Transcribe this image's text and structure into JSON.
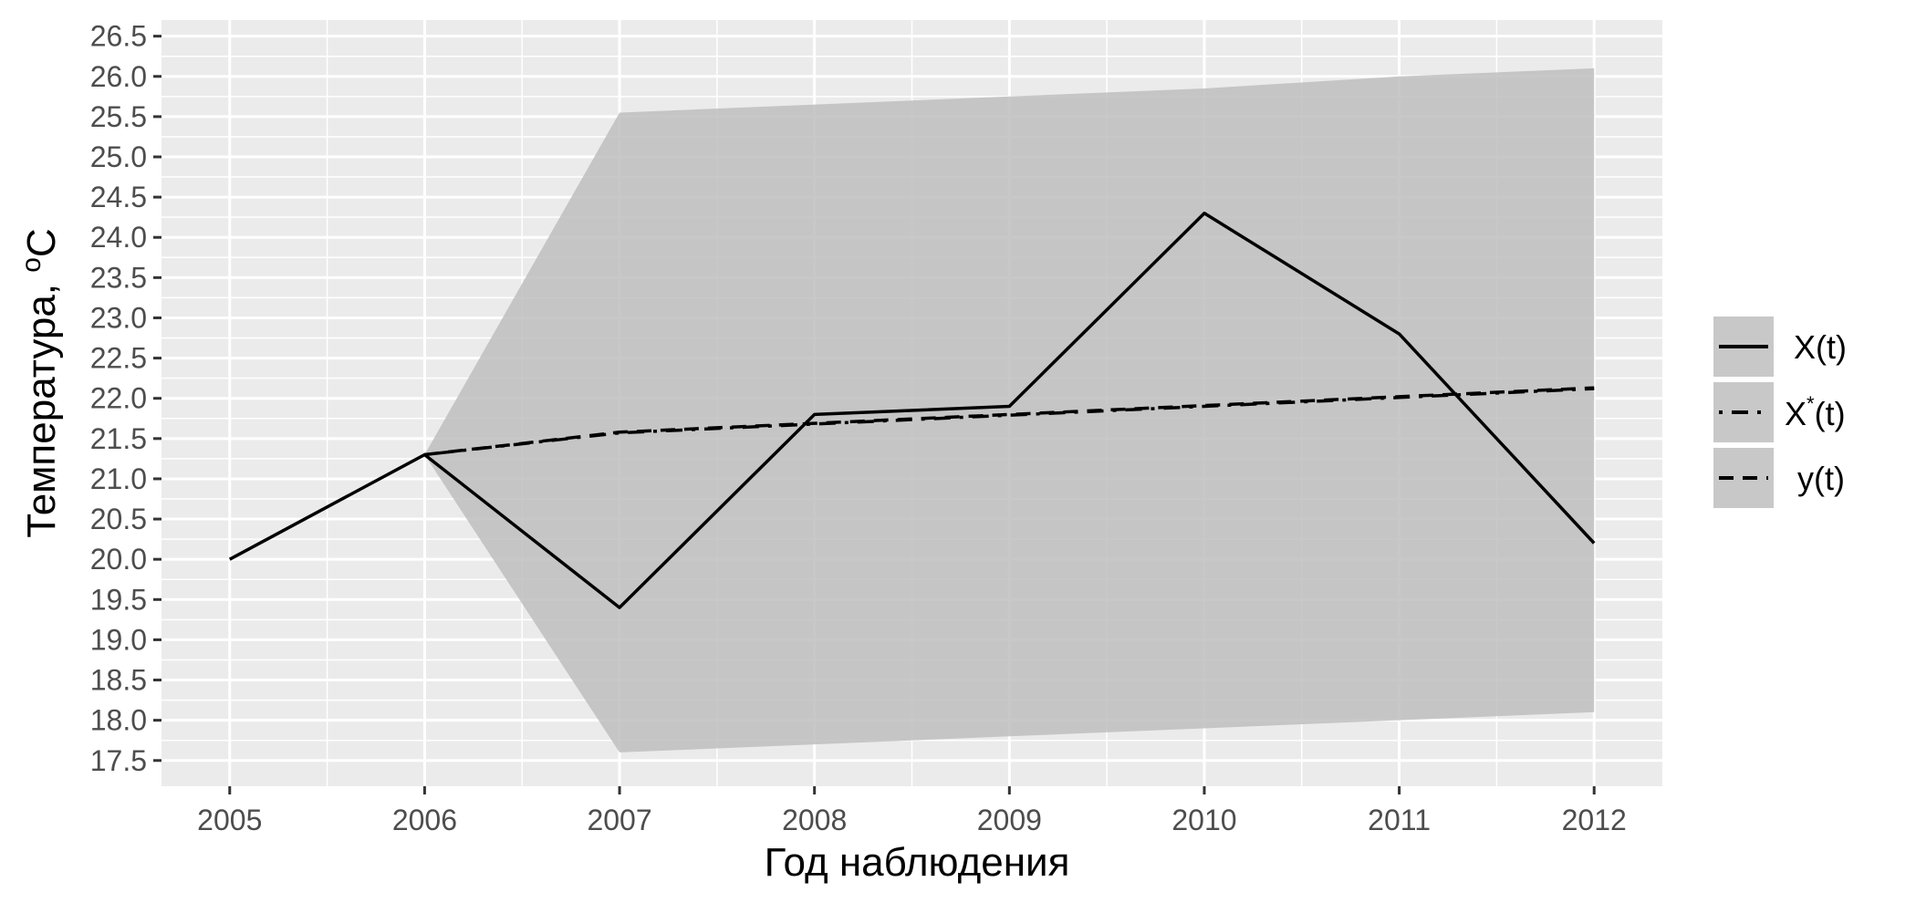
{
  "chart_data": {
    "type": "line",
    "xlabel": "Год наблюдения",
    "ylabel_main": "Температура, ",
    "ylabel_sup": "o",
    "ylabel_unit": "C",
    "x": [
      2005,
      2006,
      2007,
      2008,
      2009,
      2010,
      2011,
      2012
    ],
    "xlim": [
      2004.65,
      2012.35
    ],
    "ylim": [
      17.18,
      26.7
    ],
    "y_ticks": [
      17.5,
      18.0,
      18.5,
      19.0,
      19.5,
      20.0,
      20.5,
      21.0,
      21.5,
      22.0,
      22.5,
      23.0,
      23.5,
      24.0,
      24.5,
      25.0,
      25.5,
      26.0,
      26.5
    ],
    "y_tick_labels": [
      "17.5",
      "18.0",
      "18.5",
      "19.0",
      "19.5",
      "20.0",
      "20.5",
      "21.0",
      "21.5",
      "22.0",
      "22.5",
      "23.0",
      "23.5",
      "24.0",
      "24.5",
      "25.0",
      "25.5",
      "26.0",
      "26.5"
    ],
    "x_tick_labels": [
      "2005",
      "2006",
      "2007",
      "2008",
      "2009",
      "2010",
      "2011",
      "2012"
    ],
    "grid": true,
    "legend_position": "right",
    "band": {
      "x": [
        2006,
        2007,
        2008,
        2009,
        2010,
        2011,
        2012
      ],
      "lower": [
        21.3,
        17.6,
        17.7,
        17.8,
        17.9,
        18.0,
        18.1
      ],
      "upper": [
        21.3,
        25.55,
        25.65,
        25.75,
        25.85,
        26.0,
        26.1
      ]
    },
    "series": [
      {
        "name": "X(t)",
        "style": "solid",
        "x": [
          2005,
          2006,
          2007,
          2008,
          2009,
          2010,
          2011,
          2012
        ],
        "values": [
          20.0,
          21.3,
          19.4,
          21.8,
          21.9,
          24.3,
          22.8,
          20.2
        ]
      },
      {
        "name": "X*(t)",
        "label_main": "X",
        "label_sup": "*",
        "label_tail": "(t)",
        "style": "dotdash",
        "x": [
          2006,
          2007,
          2008,
          2009,
          2010,
          2011,
          2012
        ],
        "values": [
          21.3,
          21.57,
          21.68,
          21.79,
          21.9,
          22.01,
          22.12
        ]
      },
      {
        "name": "y(t)",
        "style": "dashed",
        "x": [
          2006,
          2007,
          2008,
          2009,
          2010,
          2011,
          2012
        ],
        "values": [
          21.3,
          21.58,
          21.69,
          21.8,
          21.91,
          22.02,
          22.13
        ]
      }
    ],
    "colors": {
      "panel": "#ebebeb",
      "grid": "#ffffff",
      "band": "#bebebe",
      "line": "#000000",
      "legend_key": "#c8c8c8"
    }
  }
}
